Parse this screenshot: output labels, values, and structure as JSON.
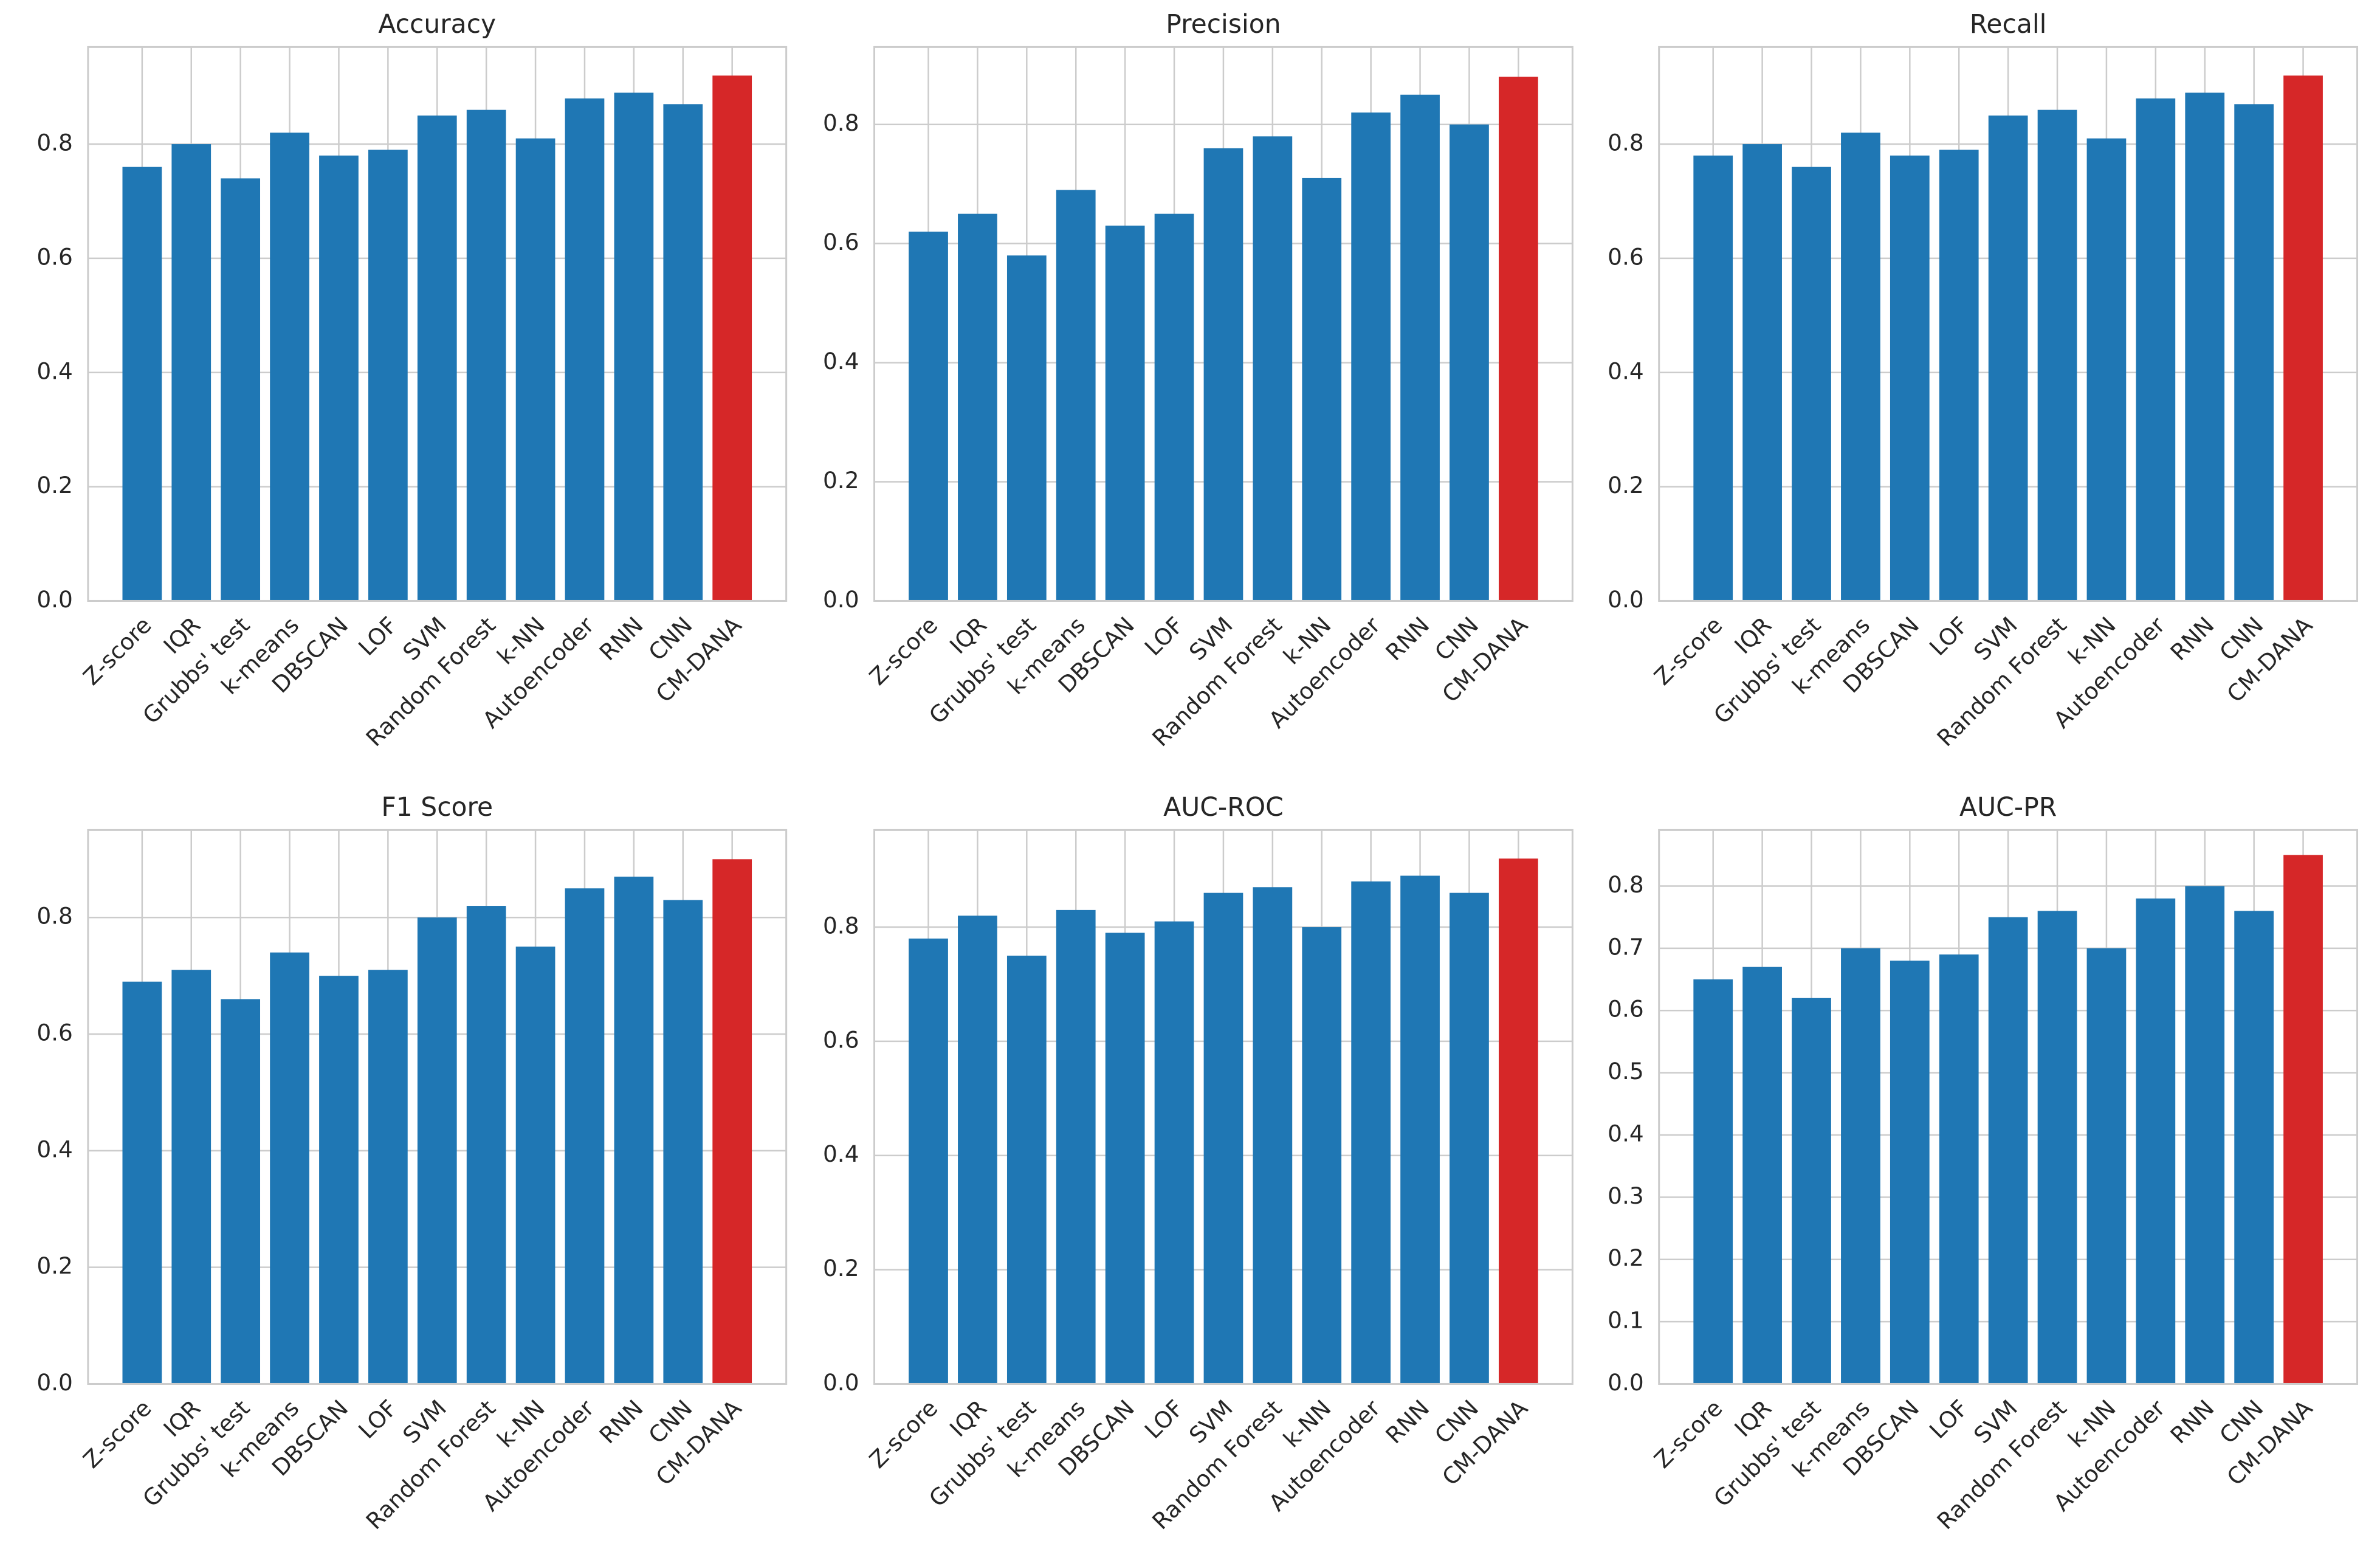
{
  "chart_data": [
    {
      "type": "bar",
      "title": "Accuracy",
      "categories": [
        "Z-score",
        "IQR",
        "Grubbs' test",
        "k-means",
        "DBSCAN",
        "LOF",
        "SVM",
        "Random Forest",
        "k-NN",
        "Autoencoder",
        "RNN",
        "CNN",
        "CM-DANA"
      ],
      "values": [
        0.76,
        0.8,
        0.74,
        0.82,
        0.78,
        0.79,
        0.85,
        0.86,
        0.81,
        0.88,
        0.89,
        0.87,
        0.92
      ],
      "colors": [
        "#1f77b4",
        "#1f77b4",
        "#1f77b4",
        "#1f77b4",
        "#1f77b4",
        "#1f77b4",
        "#1f77b4",
        "#1f77b4",
        "#1f77b4",
        "#1f77b4",
        "#1f77b4",
        "#1f77b4",
        "#d62728"
      ],
      "ylim": [
        0,
        0.97
      ],
      "yticks": [
        {
          "value": 0,
          "label": "0.0"
        },
        0.2,
        0.4,
        0.6,
        0.8
      ],
      "grid": true
    },
    {
      "type": "bar",
      "title": "Precision",
      "categories": [
        "Z-score",
        "IQR",
        "Grubbs' test",
        "k-means",
        "DBSCAN",
        "LOF",
        "SVM",
        "Random Forest",
        "k-NN",
        "Autoencoder",
        "RNN",
        "CNN",
        "CM-DANA"
      ],
      "values": [
        0.62,
        0.65,
        0.58,
        0.69,
        0.63,
        0.65,
        0.76,
        0.78,
        0.71,
        0.82,
        0.85,
        0.8,
        0.88
      ],
      "colors": [
        "#1f77b4",
        "#1f77b4",
        "#1f77b4",
        "#1f77b4",
        "#1f77b4",
        "#1f77b4",
        "#1f77b4",
        "#1f77b4",
        "#1f77b4",
        "#1f77b4",
        "#1f77b4",
        "#1f77b4",
        "#d62728"
      ],
      "ylim": [
        0,
        0.93
      ],
      "yticks": [
        {
          "value": 0,
          "label": "0.0"
        },
        0.2,
        0.4,
        0.6,
        0.8
      ],
      "grid": true
    },
    {
      "type": "bar",
      "title": "Recall",
      "categories": [
        "Z-score",
        "IQR",
        "Grubbs' test",
        "k-means",
        "DBSCAN",
        "LOF",
        "SVM",
        "Random Forest",
        "k-NN",
        "Autoencoder",
        "RNN",
        "CNN",
        "CM-DANA"
      ],
      "values": [
        0.78,
        0.8,
        0.76,
        0.82,
        0.78,
        0.79,
        0.85,
        0.86,
        0.81,
        0.88,
        0.89,
        0.87,
        0.92
      ],
      "colors": [
        "#1f77b4",
        "#1f77b4",
        "#1f77b4",
        "#1f77b4",
        "#1f77b4",
        "#1f77b4",
        "#1f77b4",
        "#1f77b4",
        "#1f77b4",
        "#1f77b4",
        "#1f77b4",
        "#1f77b4",
        "#d62728"
      ],
      "ylim": [
        0,
        0.97
      ],
      "yticks": [
        {
          "value": 0,
          "label": "0.0"
        },
        0.2,
        0.4,
        0.6,
        0.8
      ],
      "grid": true
    },
    {
      "type": "bar",
      "title": "F1 Score",
      "categories": [
        "Z-score",
        "IQR",
        "Grubbs' test",
        "k-means",
        "DBSCAN",
        "LOF",
        "SVM",
        "Random Forest",
        "k-NN",
        "Autoencoder",
        "RNN",
        "CNN",
        "CM-DANA"
      ],
      "values": [
        0.69,
        0.71,
        0.66,
        0.74,
        0.7,
        0.71,
        0.8,
        0.82,
        0.75,
        0.85,
        0.87,
        0.83,
        0.9
      ],
      "colors": [
        "#1f77b4",
        "#1f77b4",
        "#1f77b4",
        "#1f77b4",
        "#1f77b4",
        "#1f77b4",
        "#1f77b4",
        "#1f77b4",
        "#1f77b4",
        "#1f77b4",
        "#1f77b4",
        "#1f77b4",
        "#d62728"
      ],
      "ylim": [
        0,
        0.95
      ],
      "yticks": [
        {
          "value": 0,
          "label": "0.0"
        },
        0.2,
        0.4,
        0.6,
        0.8
      ],
      "grid": true
    },
    {
      "type": "bar",
      "title": "AUC-ROC",
      "categories": [
        "Z-score",
        "IQR",
        "Grubbs' test",
        "k-means",
        "DBSCAN",
        "LOF",
        "SVM",
        "Random Forest",
        "k-NN",
        "Autoencoder",
        "RNN",
        "CNN",
        "CM-DANA"
      ],
      "values": [
        0.78,
        0.82,
        0.75,
        0.83,
        0.79,
        0.81,
        0.86,
        0.87,
        0.8,
        0.88,
        0.89,
        0.86,
        0.92
      ],
      "colors": [
        "#1f77b4",
        "#1f77b4",
        "#1f77b4",
        "#1f77b4",
        "#1f77b4",
        "#1f77b4",
        "#1f77b4",
        "#1f77b4",
        "#1f77b4",
        "#1f77b4",
        "#1f77b4",
        "#1f77b4",
        "#d62728"
      ],
      "ylim": [
        0,
        0.97
      ],
      "yticks": [
        {
          "value": 0,
          "label": "0.0"
        },
        0.2,
        0.4,
        0.6,
        0.8
      ],
      "grid": true
    },
    {
      "type": "bar",
      "title": "AUC-PR",
      "categories": [
        "Z-score",
        "IQR",
        "Grubbs' test",
        "k-means",
        "DBSCAN",
        "LOF",
        "SVM",
        "Random Forest",
        "k-NN",
        "Autoencoder",
        "RNN",
        "CNN",
        "CM-DANA"
      ],
      "values": [
        0.65,
        0.67,
        0.62,
        0.7,
        0.68,
        0.69,
        0.75,
        0.76,
        0.7,
        0.78,
        0.8,
        0.76,
        0.85
      ],
      "colors": [
        "#1f77b4",
        "#1f77b4",
        "#1f77b4",
        "#1f77b4",
        "#1f77b4",
        "#1f77b4",
        "#1f77b4",
        "#1f77b4",
        "#1f77b4",
        "#1f77b4",
        "#1f77b4",
        "#1f77b4",
        "#d62728"
      ],
      "ylim": [
        0,
        0.89
      ],
      "yticks": [
        {
          "value": 0,
          "label": "0.0"
        },
        0.1,
        0.2,
        0.3,
        0.4,
        0.5,
        0.6,
        0.7,
        0.8
      ],
      "grid": true
    }
  ]
}
